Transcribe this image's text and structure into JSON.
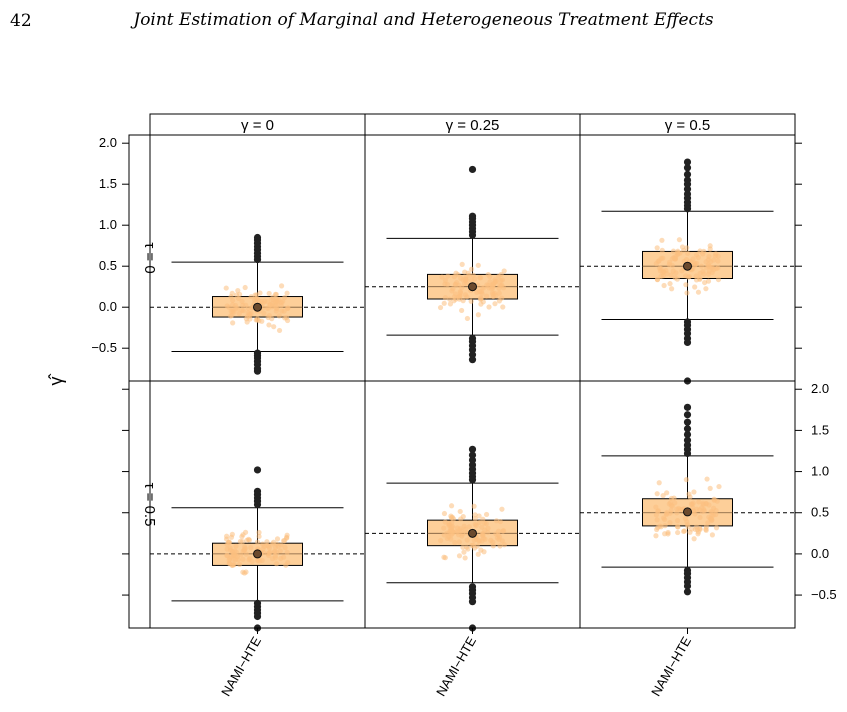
{
  "page": {
    "number": "42",
    "running_title": "Joint Estimation of Marginal and Heterogeneous Treatment Effects"
  },
  "chart_data": {
    "type": "boxplot",
    "title": "",
    "xlabel": "",
    "ylabel": "γ̂",
    "ylim": [
      -0.9,
      2.1
    ],
    "yticks": [
      -0.5,
      0.0,
      0.5,
      1.0,
      1.5,
      2.0
    ],
    "ytick_labels": [
      "−0.5",
      "0.0",
      "0.5",
      "1.0",
      "1.5",
      "2.0"
    ],
    "category": "NAMI−HTE",
    "grid": false,
    "colors": {
      "box_fill": "#fdcf99",
      "jitter_point": "#fbbf80",
      "outlier": "#222222",
      "mean_point": "#6b4a2e",
      "reference_line": "#000000"
    },
    "columns": [
      "γ = 0",
      "γ = 0.25",
      "γ = 0.5"
    ],
    "rows": [
      "τ = 0",
      "τ = 0.5"
    ],
    "panels": [
      {
        "row": "τ = 0",
        "column": "γ = 0",
        "true_value": 0.0,
        "mean": 0.0,
        "box": {
          "whisker_low": -0.54,
          "q1": -0.12,
          "median": 0.0,
          "q3": 0.13,
          "whisker_high": 0.55
        },
        "outliers": [
          -0.56,
          -0.59,
          -0.62,
          -0.66,
          -0.7,
          -0.75,
          -0.78,
          0.58,
          0.62,
          0.66,
          0.7,
          0.74,
          0.78,
          0.82,
          0.85
        ]
      },
      {
        "row": "τ = 0",
        "column": "γ = 0.25",
        "true_value": 0.25,
        "mean": 0.25,
        "box": {
          "whisker_low": -0.34,
          "q1": 0.1,
          "median": 0.25,
          "q3": 0.4,
          "whisker_high": 0.84
        },
        "outliers": [
          -0.38,
          -0.42,
          -0.47,
          -0.52,
          -0.58,
          -0.64,
          0.88,
          0.92,
          0.96,
          1.0,
          1.04,
          1.08,
          1.11,
          1.68
        ]
      },
      {
        "row": "τ = 0",
        "column": "γ = 0.5",
        "true_value": 0.5,
        "mean": 0.5,
        "box": {
          "whisker_low": -0.15,
          "q1": 0.35,
          "median": 0.5,
          "q3": 0.68,
          "whisker_high": 1.17
        },
        "outliers": [
          -0.18,
          -0.22,
          -0.27,
          -0.32,
          -0.38,
          -0.43,
          1.2,
          1.24,
          1.28,
          1.33,
          1.38,
          1.44,
          1.5,
          1.55,
          1.62,
          1.7,
          1.77
        ]
      },
      {
        "row": "τ = 0.5",
        "column": "γ = 0",
        "true_value": 0.0,
        "mean": 0.0,
        "box": {
          "whisker_low": -0.57,
          "q1": -0.14,
          "median": 0.0,
          "q3": 0.13,
          "whisker_high": 0.56
        },
        "outliers": [
          -0.6,
          -0.64,
          -0.68,
          -0.72,
          -0.76,
          -0.9,
          0.6,
          0.64,
          0.68,
          0.72,
          0.76,
          1.02
        ]
      },
      {
        "row": "τ = 0.5",
        "column": "γ = 0.25",
        "true_value": 0.25,
        "mean": 0.25,
        "box": {
          "whisker_low": -0.35,
          "q1": 0.1,
          "median": 0.25,
          "q3": 0.41,
          "whisker_high": 0.86
        },
        "outliers": [
          -0.4,
          -0.44,
          -0.48,
          -0.53,
          -0.58,
          -0.9,
          0.9,
          0.94,
          0.98,
          1.03,
          1.08,
          1.14,
          1.2,
          1.27
        ]
      },
      {
        "row": "τ = 0.5",
        "column": "γ = 0.5",
        "true_value": 0.5,
        "mean": 0.51,
        "box": {
          "whisker_low": -0.16,
          "q1": 0.34,
          "median": 0.5,
          "q3": 0.67,
          "whisker_high": 1.19
        },
        "outliers": [
          -0.2,
          -0.24,
          -0.29,
          -0.34,
          -0.39,
          -0.46,
          1.22,
          1.27,
          1.32,
          1.38,
          1.45,
          1.52,
          1.6,
          1.69,
          1.78,
          2.1
        ]
      }
    ]
  }
}
